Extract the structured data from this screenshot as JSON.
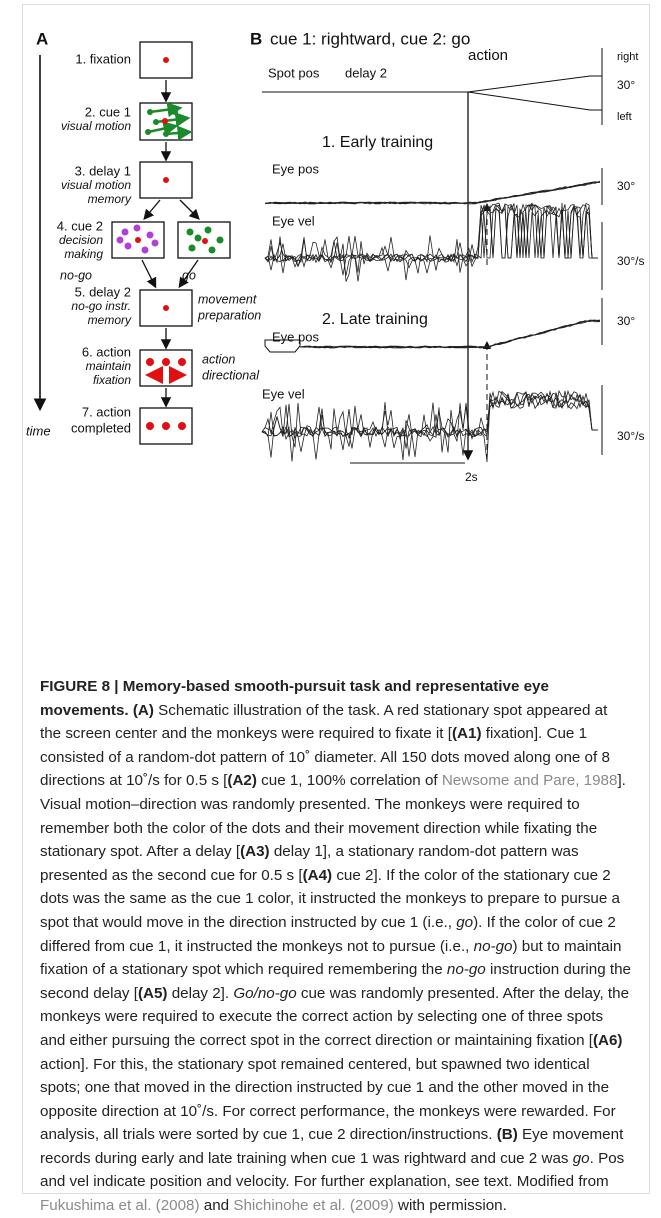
{
  "figure": {
    "panel_a": {
      "letter": "A",
      "time": "time",
      "steps": [
        {
          "title": [
            "1. fixation"
          ],
          "note": []
        },
        {
          "title": [
            "2. cue 1"
          ],
          "note": [
            "visual motion"
          ]
        },
        {
          "title": [
            "3. delay 1"
          ],
          "note": [
            "visual motion",
            "memory"
          ]
        },
        {
          "title": [
            "4. cue 2"
          ],
          "note": [
            "decision",
            "making"
          ]
        },
        {
          "title": [
            "5. delay 2"
          ],
          "note": [
            "no-go instr.",
            "memory"
          ]
        },
        {
          "title": [
            "6. action"
          ],
          "note": [
            "maintain",
            "fixation"
          ]
        },
        {
          "title": [
            "7. action",
            "completed"
          ],
          "note": []
        }
      ],
      "side_notes": [
        "no-go",
        "go",
        "movement",
        "preparation",
        "action",
        "directional"
      ]
    },
    "panel_b": {
      "letter": "B",
      "title": "cue 1: rightward, cue 2: go",
      "labels": [
        "Spot pos",
        "delay 2",
        "action",
        "right",
        "30°",
        "left",
        "1. Early training",
        "Eye pos",
        "30°",
        "Eye vel",
        "30°/s",
        "2. Late training",
        "Eye pos",
        "30°",
        "Eye vel",
        "30°/s",
        "2s"
      ]
    }
  },
  "caption": {
    "runs": [
      {
        "text": "FIGURE 8 | Memory-based smooth-pursuit task and representative eye movements. ",
        "style": "b"
      },
      {
        "text": "(A)",
        "style": "b"
      },
      {
        "text": " Schematic illustration of the task. A red stationary spot appeared at the screen center and the monkeys were required to fixate it [",
        "style": "n"
      },
      {
        "text": "(A1)",
        "style": "b"
      },
      {
        "text": " fixation]. Cue 1 consisted of a random-dot pattern of 10˚ diameter. All 150 dots moved along one of 8 directions at 10˚/s for 0.5 s [",
        "style": "n"
      },
      {
        "text": "(A2)",
        "style": "b"
      },
      {
        "text": " cue 1, 100% correlation of ",
        "style": "n"
      },
      {
        "text": "Newsome and Pare, 1988",
        "style": "l"
      },
      {
        "text": "]. Visual motion–direction was randomly presented. The monkeys were required to remember both the color of the dots and their movement direction while fixating the stationary spot. After a delay [",
        "style": "n"
      },
      {
        "text": "(A3)",
        "style": "b"
      },
      {
        "text": " delay 1], a stationary random-dot pattern was presented as the second cue for 0.5 s [",
        "style": "n"
      },
      {
        "text": "(A4)",
        "style": "b"
      },
      {
        "text": " cue 2]. If the color of the stationary cue 2 dots was the same as the cue 1 color, it instructed the monkeys to prepare to pursue a spot that would move in the direction instructed by cue 1 (i.e., ",
        "style": "n"
      },
      {
        "text": "go",
        "style": "i"
      },
      {
        "text": "). If the color of cue 2 differed from cue 1, it instructed the monkeys not to pursue (i.e., ",
        "style": "n"
      },
      {
        "text": "no-go",
        "style": "i"
      },
      {
        "text": ") but to maintain fixation of a stationary spot which required remembering the ",
        "style": "n"
      },
      {
        "text": "no-go",
        "style": "i"
      },
      {
        "text": " instruction during the second delay [",
        "style": "n"
      },
      {
        "text": "(A5)",
        "style": "b"
      },
      {
        "text": " delay 2]. ",
        "style": "n"
      },
      {
        "text": "Go/no-go",
        "style": "i"
      },
      {
        "text": " cue was randomly presented. After the delay, the monkeys were required to execute the correct action by selecting one of three spots and either pursuing the correct spot in the correct direction or maintaining fixation [",
        "style": "n"
      },
      {
        "text": "(A6)",
        "style": "b"
      },
      {
        "text": " action]. For this, the stationary spot remained centered, but spawned two identical spots; one that moved in the direction instructed by cue 1 and the other moved in the opposite direction at 10˚/s. For correct performance, the monkeys were rewarded. For analysis, all trials were sorted by cue 1, cue 2 direction/instructions. ",
        "style": "n"
      },
      {
        "text": "(B)",
        "style": "b"
      },
      {
        "text": " Eye movement records during early and late training when cue 1 was rightward and cue 2 was ",
        "style": "n"
      },
      {
        "text": "go",
        "style": "i"
      },
      {
        "text": ". Pos and vel indicate position and velocity. For further explanation, see text. Modified from ",
        "style": "n"
      },
      {
        "text": "Fukushima et al. (2008)",
        "style": "l"
      },
      {
        "text": " and ",
        "style": "n"
      },
      {
        "text": "Shichinohe et al. (2009)",
        "style": "l"
      },
      {
        "text": " with permission.",
        "style": "n"
      }
    ]
  }
}
